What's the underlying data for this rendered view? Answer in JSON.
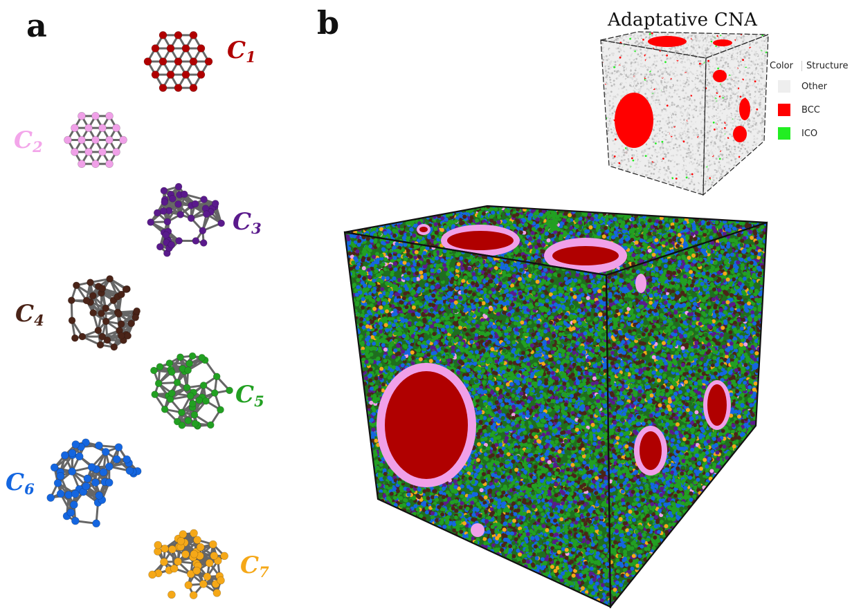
{
  "panels": {
    "a": "a",
    "b": "b"
  },
  "clusters": [
    {
      "label": "C",
      "index": "1",
      "color": "#b00000",
      "label_color": "#b00000"
    },
    {
      "label": "C",
      "index": "2",
      "color": "#f0a0e8",
      "label_color": "#f3a6ea"
    },
    {
      "label": "C",
      "index": "3",
      "color": "#5a1a8c",
      "label_color": "#5a1a8c"
    },
    {
      "label": "C",
      "index": "4",
      "color": "#4a2418",
      "label_color": "#4a2418"
    },
    {
      "label": "C",
      "index": "5",
      "color": "#22a022",
      "label_color": "#22a022"
    },
    {
      "label": "C",
      "index": "6",
      "color": "#1466e0",
      "label_color": "#1466e0"
    },
    {
      "label": "C",
      "index": "7",
      "color": "#f5a818",
      "label_color": "#f5a818"
    }
  ],
  "inset": {
    "title": "Adaptative CNA",
    "legend": {
      "col_color": "Color",
      "col_structure": "Structure",
      "rows": [
        {
          "name": "Other",
          "color": "#eeeeee"
        },
        {
          "name": "BCC",
          "color": "#ff0000"
        },
        {
          "name": "ICO",
          "color": "#22ee22"
        }
      ]
    }
  }
}
